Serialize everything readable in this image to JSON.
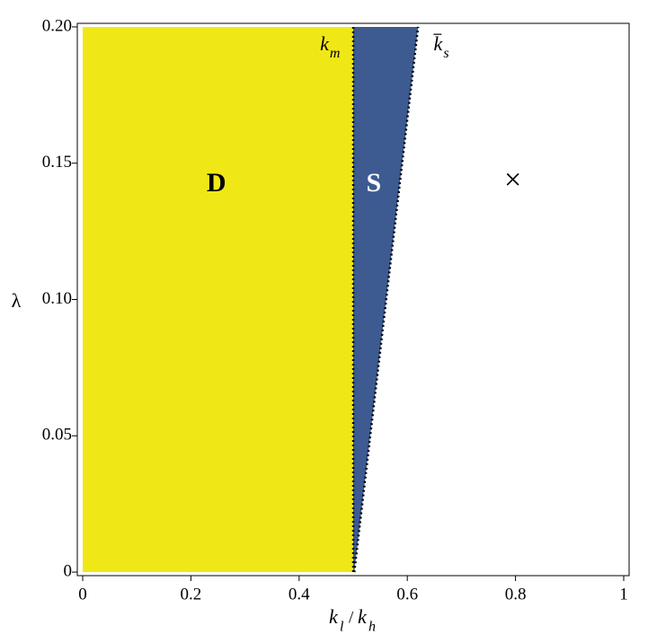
{
  "chart_data": {
    "type": "region",
    "xlim": [
      -0.01,
      1.01
    ],
    "ylim": [
      -0.0013,
      0.2013
    ],
    "xticks": [
      0,
      0.2,
      0.4,
      0.6,
      0.8,
      1
    ],
    "yticks": [
      0,
      0.05,
      {
        "value": 0.1,
        "label": "0.10"
      },
      0.15,
      {
        "value": 0.2,
        "label": "0.20"
      }
    ],
    "x_label": {
      "base": "k",
      "sub": "l",
      "sep": "/",
      "base2": "k",
      "sub2": "h"
    },
    "y_label": "λ",
    "regions": [
      {
        "name": "D",
        "color": "#f0e816",
        "x": [
          0,
          0.5,
          0.5,
          0
        ],
        "y": [
          0,
          0,
          0.2,
          0.2
        ],
        "label_x": 0.247,
        "label_y": 0.142,
        "label_color": "#000000"
      },
      {
        "name": "S",
        "color": "#3d5a91",
        "x": [
          0.5,
          0.502,
          0.62,
          0.5
        ],
        "y": [
          0,
          0,
          0.2,
          0.2
        ],
        "label_x": 0.538,
        "label_y": 0.142,
        "label_color": "#ffffff"
      }
    ],
    "curves": [
      {
        "base": "k",
        "sub": "m",
        "overline": false,
        "x": [
          0.5,
          0.5
        ],
        "y": [
          0,
          0.2
        ],
        "label_x": 0.455,
        "label_y": 0.193
      },
      {
        "base": "k",
        "sub": "s",
        "overline": true,
        "x": [
          0.502,
          0.62
        ],
        "y": [
          0,
          0.2
        ],
        "label_x": 0.665,
        "label_y": 0.193
      }
    ],
    "annotations": [
      {
        "text": "×",
        "x": 0.795,
        "y": 0.143
      }
    ]
  }
}
